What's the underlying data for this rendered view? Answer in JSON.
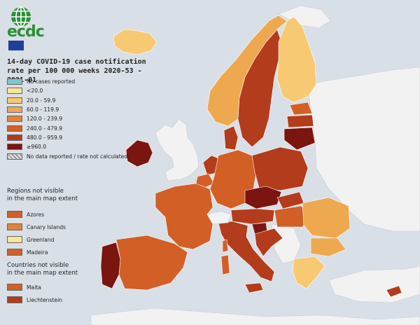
{
  "logo": {
    "name": "ecdc"
  },
  "title_line1": "14-day COVID-19 case notification",
  "title_line2": "rate per 100 000 weeks 2020-53 - 2021-01",
  "legend": [
    {
      "label": "No cases reported",
      "color": "#7ec8cf"
    },
    {
      "label": "<20.0",
      "color": "#fbe49a"
    },
    {
      "label": "20.0 - 59.9",
      "color": "#f8c973"
    },
    {
      "label": "60.0 - 119.9",
      "color": "#eea850"
    },
    {
      "label": "120.0 - 239.9",
      "color": "#e38337"
    },
    {
      "label": "240.0 - 479.9",
      "color": "#d25f25"
    },
    {
      "label": "480.0 - 959.9",
      "color": "#b23c1b"
    },
    {
      "label": "≥960.0",
      "color": "#7a1510"
    },
    {
      "label": "No data reported / rate not calculated",
      "color": "hatch"
    }
  ],
  "regions_heading_1": "Regions not visible",
  "regions_heading_2": "in the main map extent",
  "regions": [
    {
      "label": "Azores",
      "color": "#d25f25"
    },
    {
      "label": "Canary Islands",
      "color": "#e38337"
    },
    {
      "label": "Greenland",
      "color": "#fbe49a"
    },
    {
      "label": "Madeira",
      "color": "#d25f25"
    }
  ],
  "countries_heading_1": "Countries not visible",
  "countries_heading_2": "in the main map extent",
  "countries": [
    {
      "label": "Malta",
      "color": "#d25f25"
    },
    {
      "label": "Liechtenstein",
      "color": "#b23c1b"
    }
  ],
  "colors": {
    "sea": "#d9dfe6",
    "non_eu_land": "#f2f2f2",
    "border": "#ffffff"
  }
}
